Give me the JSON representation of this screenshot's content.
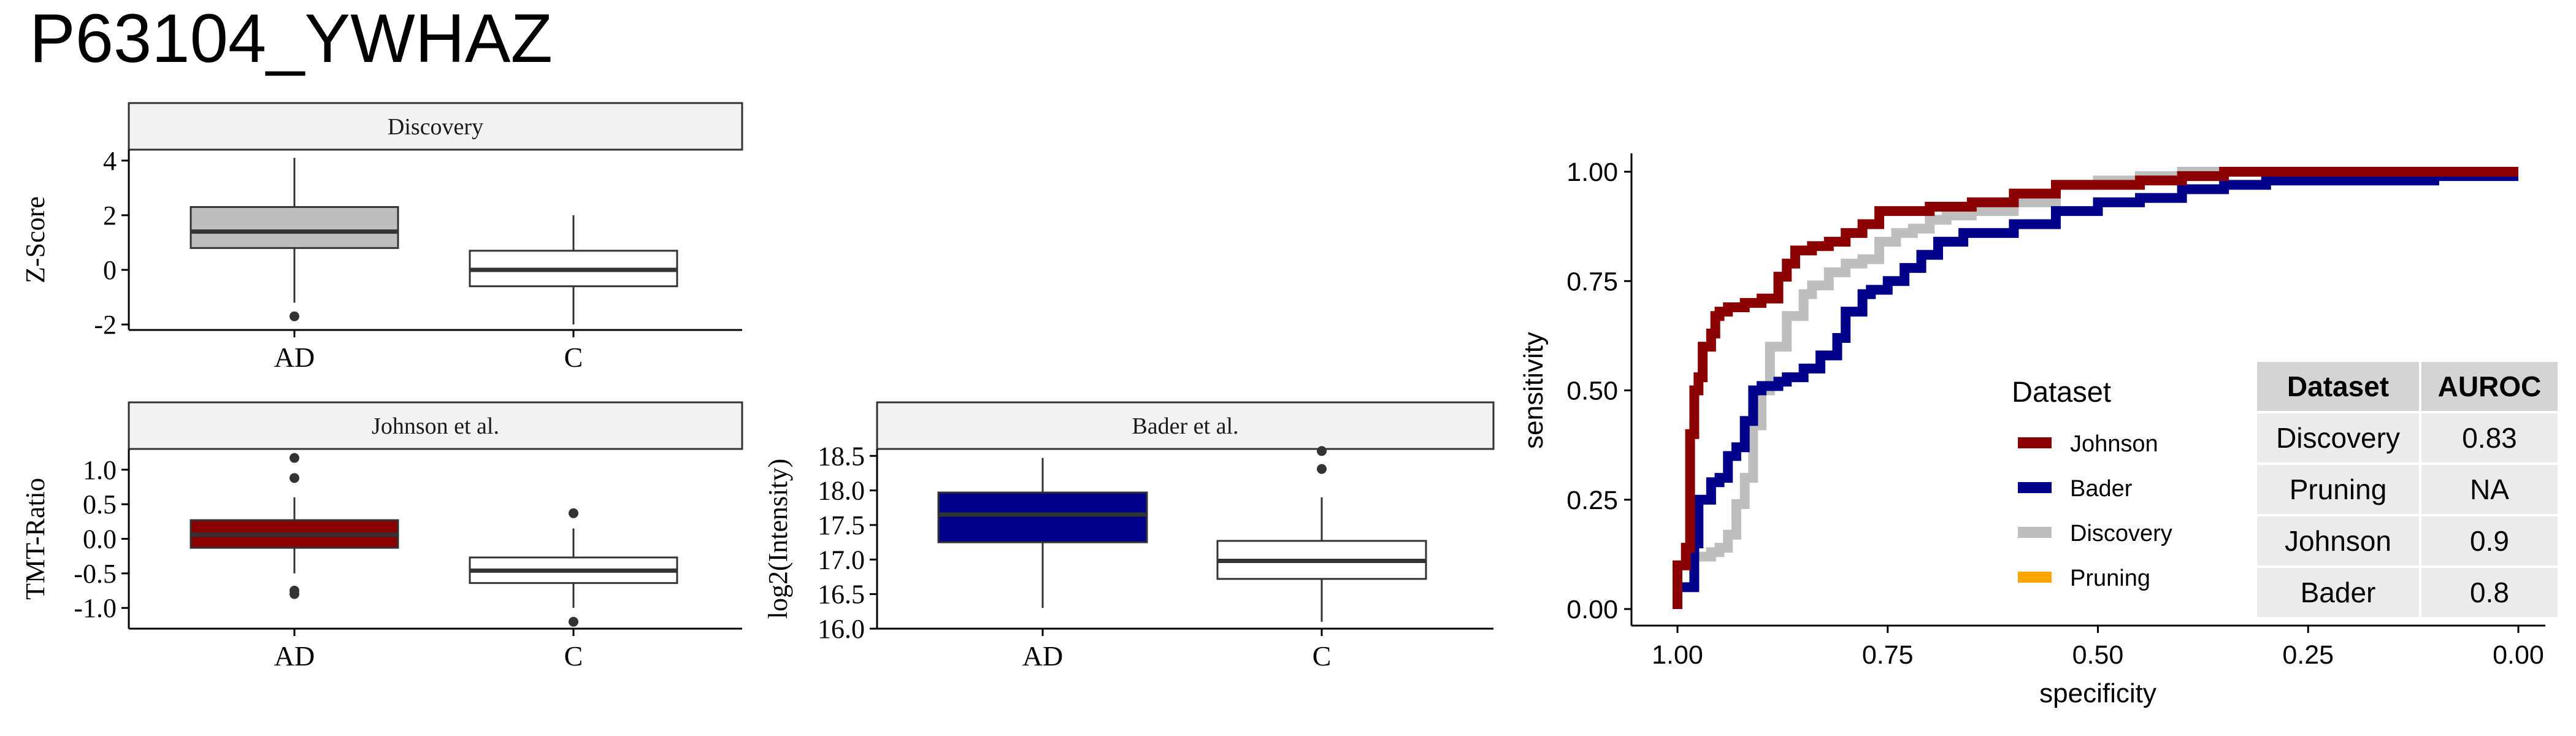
{
  "title": "P63104_YWHAZ",
  "colors": {
    "johnson": "#8B0000",
    "bader": "#00008B",
    "discovery": "#BEBEBE",
    "pruning": "#FFA500",
    "control": "#FFFFFF"
  },
  "chart_data": [
    {
      "type": "boxplot",
      "panel": "Discovery",
      "ylabel": "Z-Score",
      "categories": [
        "AD",
        "C"
      ],
      "ylim": [
        -2.2,
        4.4
      ],
      "yticks": [
        -2,
        0,
        2,
        4
      ],
      "ytick_labels": [
        "-2",
        "0",
        "2",
        "4"
      ],
      "fills": [
        "#BEBEBE",
        "#FFFFFF"
      ],
      "boxes": [
        {
          "category": "AD",
          "lower_whisker": -1.2,
          "q1": 0.8,
          "median": 1.4,
          "q3": 2.3,
          "upper_whisker": 4.1,
          "outliers": [
            -1.7
          ]
        },
        {
          "category": "C",
          "lower_whisker": -2.0,
          "q1": -0.6,
          "median": 0.0,
          "q3": 0.7,
          "upper_whisker": 2.0,
          "outliers": []
        }
      ]
    },
    {
      "type": "boxplot",
      "panel": "Johnson et al.",
      "ylabel": "TMT-Ratio",
      "categories": [
        "AD",
        "C"
      ],
      "ylim": [
        -1.3,
        1.3
      ],
      "yticks": [
        -1.0,
        -0.5,
        0.0,
        0.5,
        1.0
      ],
      "ytick_labels": [
        "-1.0",
        "-0.5",
        "0.0",
        "0.5",
        "1.0"
      ],
      "fills": [
        "#8B0000",
        "#FFFFFF"
      ],
      "boxes": [
        {
          "category": "AD",
          "lower_whisker": -0.5,
          "q1": -0.13,
          "median": 0.06,
          "q3": 0.27,
          "upper_whisker": 0.6,
          "outliers": [
            1.17,
            0.88,
            -0.75,
            -0.8
          ]
        },
        {
          "category": "C",
          "lower_whisker": -1.0,
          "q1": -0.64,
          "median": -0.46,
          "q3": -0.27,
          "upper_whisker": 0.15,
          "outliers": [
            0.37,
            -1.2
          ]
        }
      ]
    },
    {
      "type": "boxplot",
      "panel": "Bader et al.",
      "ylabel": "log2(Intensity)",
      "categories": [
        "AD",
        "C"
      ],
      "ylim": [
        16.0,
        18.6
      ],
      "yticks": [
        16.0,
        16.5,
        17.0,
        17.5,
        18.0,
        18.5
      ],
      "ytick_labels": [
        "16.0",
        "16.5",
        "17.0",
        "17.5",
        "18.0",
        "18.5"
      ],
      "fills": [
        "#00008B",
        "#FFFFFF"
      ],
      "boxes": [
        {
          "category": "AD",
          "lower_whisker": 16.3,
          "q1": 17.25,
          "median": 17.65,
          "q3": 17.97,
          "upper_whisker": 18.47,
          "outliers": []
        },
        {
          "category": "C",
          "lower_whisker": 16.1,
          "q1": 16.72,
          "median": 16.98,
          "q3": 17.27,
          "upper_whisker": 17.9,
          "outliers": [
            18.57,
            18.31
          ]
        }
      ]
    },
    {
      "type": "line",
      "subtype": "roc",
      "xlabel": "specificity",
      "ylabel": "sensitivity",
      "xlim": [
        1.0,
        0.0
      ],
      "ylim": [
        0.0,
        1.0
      ],
      "xticks": [
        1.0,
        0.75,
        0.5,
        0.25,
        0.0
      ],
      "xtick_labels": [
        "1.00",
        "0.75",
        "0.50",
        "0.25",
        "0.00"
      ],
      "yticks": [
        0.0,
        0.25,
        0.5,
        0.75,
        1.0
      ],
      "ytick_labels": [
        "0.00",
        "0.25",
        "0.50",
        "0.75",
        "1.00"
      ],
      "legend_title": "Dataset",
      "legend_position": "right",
      "series": [
        {
          "name": "Johnson",
          "color": "#8B0000",
          "x": [
            1.0,
            0.99,
            0.985,
            0.98,
            0.975,
            0.97,
            0.96,
            0.955,
            0.95,
            0.94,
            0.92,
            0.9,
            0.88,
            0.87,
            0.86,
            0.85,
            0.84,
            0.82,
            0.8,
            0.78,
            0.76,
            0.75,
            0.73,
            0.7,
            0.65,
            0.6,
            0.55,
            0.5,
            0.45,
            0.4,
            0.35,
            0.3,
            0.2,
            0.1,
            0.0
          ],
          "y": [
            0.0,
            0.1,
            0.14,
            0.4,
            0.5,
            0.53,
            0.6,
            0.63,
            0.67,
            0.68,
            0.69,
            0.7,
            0.71,
            0.76,
            0.79,
            0.82,
            0.82,
            0.83,
            0.84,
            0.86,
            0.88,
            0.91,
            0.91,
            0.91,
            0.92,
            0.93,
            0.95,
            0.97,
            0.97,
            0.98,
            0.99,
            1.0,
            1.0,
            1.0,
            1.0
          ]
        },
        {
          "name": "Bader",
          "color": "#00008B",
          "x": [
            1.0,
            0.98,
            0.975,
            0.96,
            0.95,
            0.94,
            0.93,
            0.92,
            0.91,
            0.9,
            0.89,
            0.88,
            0.87,
            0.85,
            0.83,
            0.81,
            0.8,
            0.78,
            0.77,
            0.75,
            0.73,
            0.71,
            0.69,
            0.66,
            0.63,
            0.6,
            0.55,
            0.5,
            0.45,
            0.4,
            0.35,
            0.3,
            0.2,
            0.1,
            0.05,
            0.0
          ],
          "y": [
            0.0,
            0.05,
            0.15,
            0.25,
            0.29,
            0.3,
            0.35,
            0.37,
            0.43,
            0.5,
            0.51,
            0.51,
            0.52,
            0.53,
            0.55,
            0.58,
            0.62,
            0.68,
            0.72,
            0.73,
            0.75,
            0.78,
            0.81,
            0.84,
            0.86,
            0.86,
            0.88,
            0.91,
            0.93,
            0.94,
            0.96,
            0.97,
            0.98,
            0.98,
            0.99,
            0.99
          ]
        },
        {
          "name": "Discovery",
          "color": "#BEBEBE",
          "x": [
            1.0,
            0.98,
            0.96,
            0.95,
            0.94,
            0.93,
            0.92,
            0.91,
            0.9,
            0.89,
            0.87,
            0.85,
            0.84,
            0.82,
            0.8,
            0.78,
            0.76,
            0.74,
            0.72,
            0.7,
            0.68,
            0.65,
            0.6,
            0.55,
            0.5,
            0.45,
            0.4,
            0.3,
            0.2,
            0.1,
            0.0
          ],
          "y": [
            0.0,
            0.1,
            0.12,
            0.13,
            0.14,
            0.17,
            0.24,
            0.3,
            0.42,
            0.5,
            0.6,
            0.67,
            0.72,
            0.74,
            0.77,
            0.79,
            0.8,
            0.84,
            0.86,
            0.87,
            0.89,
            0.9,
            0.91,
            0.93,
            0.97,
            0.98,
            0.99,
            1.0,
            1.0,
            1.0,
            1.0
          ]
        },
        {
          "name": "Pruning",
          "color": "#FFA500",
          "x": [],
          "y": []
        }
      ]
    },
    {
      "type": "table",
      "columns": [
        "Dataset",
        "AUROC"
      ],
      "rows": [
        [
          "Discovery",
          "0.83"
        ],
        [
          "Pruning",
          "NA"
        ],
        [
          "Johnson",
          "0.9"
        ],
        [
          "Bader",
          "0.8"
        ]
      ]
    }
  ]
}
